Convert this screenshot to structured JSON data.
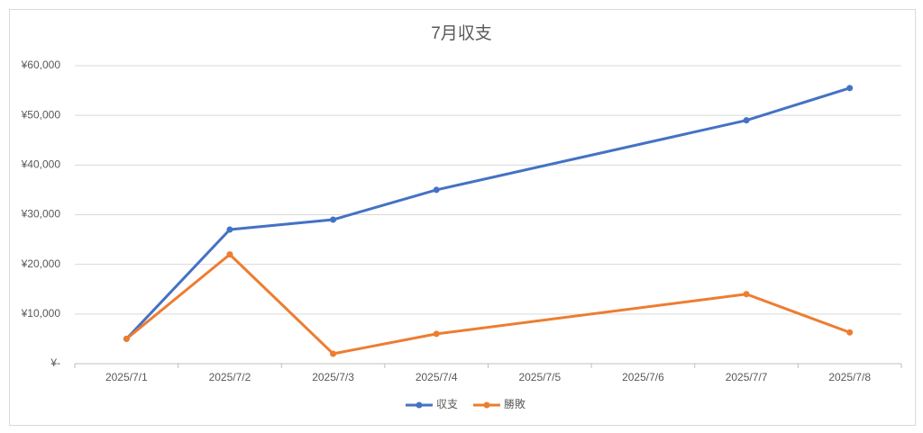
{
  "chart_data": {
    "type": "line",
    "title": "7月収支",
    "categories": [
      "2025/7/1",
      "2025/7/2",
      "2025/7/3",
      "2025/7/4",
      "2025/7/5",
      "2025/7/6",
      "2025/7/7",
      "2025/7/8"
    ],
    "series": [
      {
        "name": "収支",
        "color": "#4472c4",
        "values": [
          5000,
          27000,
          29000,
          35000,
          null,
          null,
          49000,
          55500
        ]
      },
      {
        "name": "勝敗",
        "color": "#ed7d31",
        "values": [
          5000,
          22000,
          2000,
          6000,
          null,
          null,
          14000,
          6300
        ]
      }
    ],
    "ylim": [
      0,
      60000
    ],
    "yticks": [
      {
        "value": 0,
        "label": "¥-"
      },
      {
        "value": 10000,
        "label": "¥10,000"
      },
      {
        "value": 20000,
        "label": "¥20,000"
      },
      {
        "value": 30000,
        "label": "¥30,000"
      },
      {
        "value": 40000,
        "label": "¥40,000"
      },
      {
        "value": 50000,
        "label": "¥50,000"
      },
      {
        "value": 60000,
        "label": "¥60,000"
      }
    ],
    "grid": true,
    "connect_gaps": true,
    "legend": "bottom"
  }
}
